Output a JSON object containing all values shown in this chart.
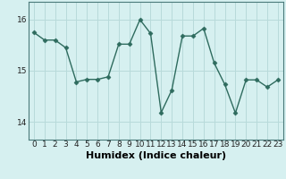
{
  "x": [
    0,
    1,
    2,
    3,
    4,
    5,
    6,
    7,
    8,
    9,
    10,
    11,
    12,
    13,
    14,
    15,
    16,
    17,
    18,
    19,
    20,
    21,
    22,
    23
  ],
  "y": [
    15.75,
    15.6,
    15.6,
    15.45,
    14.78,
    14.83,
    14.83,
    14.88,
    15.52,
    15.52,
    16.0,
    15.73,
    14.18,
    14.62,
    15.68,
    15.68,
    15.83,
    15.15,
    14.73,
    14.17,
    14.82,
    14.82,
    14.68,
    14.82
  ],
  "line_color": "#2e6b5e",
  "marker": "D",
  "marker_size": 2.5,
  "bg_color": "#d6f0f0",
  "grid_color": "#b8dada",
  "xlabel": "Humidex (Indice chaleur)",
  "yticks": [
    14,
    15,
    16
  ],
  "xticks": [
    0,
    1,
    2,
    3,
    4,
    5,
    6,
    7,
    8,
    9,
    10,
    11,
    12,
    13,
    14,
    15,
    16,
    17,
    18,
    19,
    20,
    21,
    22,
    23
  ],
  "ylim": [
    13.65,
    16.35
  ],
  "xlim": [
    -0.5,
    23.5
  ],
  "tick_fontsize": 6.5,
  "xlabel_fontsize": 8,
  "linewidth": 1.0
}
